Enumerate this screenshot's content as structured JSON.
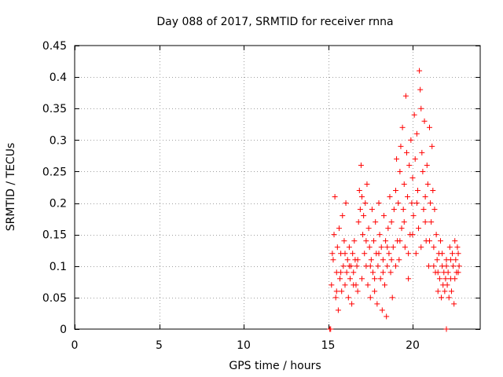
{
  "chart_data": {
    "type": "scatter",
    "title": "Day 088 of 2017, SRMTID for receiver rnna",
    "xlabel": "GPS time / hours",
    "ylabel": "SRMTID / TECUs",
    "xlim": [
      0,
      24
    ],
    "ylim": [
      0,
      0.45
    ],
    "grid": true,
    "marker": "+",
    "marker_color": "#ff0000",
    "x_ticks": [
      {
        "value": 0,
        "label": "0"
      },
      {
        "value": 5,
        "label": "5"
      },
      {
        "value": 10,
        "label": "10"
      },
      {
        "value": 15,
        "label": "15"
      },
      {
        "value": 20,
        "label": "20"
      }
    ],
    "y_ticks": [
      {
        "value": 0,
        "label": "0"
      },
      {
        "value": 0.05,
        "label": "0.05"
      },
      {
        "value": 0.1,
        "label": "0.1"
      },
      {
        "value": 0.15,
        "label": "0.15"
      },
      {
        "value": 0.2,
        "label": "0.2"
      },
      {
        "value": 0.25,
        "label": "0.25"
      },
      {
        "value": 0.3,
        "label": "0.3"
      },
      {
        "value": 0.35,
        "label": "0.35"
      },
      {
        "value": 0.4,
        "label": "0.4"
      },
      {
        "value": 0.45,
        "label": "0.45"
      }
    ],
    "series": [
      {
        "name": "SRMTID",
        "points": [
          [
            15.1,
            0.0
          ],
          [
            15.15,
            0.0
          ],
          [
            22.0,
            0.0
          ],
          [
            15.2,
            0.07
          ],
          [
            15.3,
            0.11
          ],
          [
            15.35,
            0.15
          ],
          [
            15.4,
            0.21
          ],
          [
            15.45,
            0.05
          ],
          [
            15.5,
            0.09
          ],
          [
            15.55,
            0.13
          ],
          [
            15.6,
            0.03
          ],
          [
            15.65,
            0.16
          ],
          [
            15.7,
            0.08
          ],
          [
            15.75,
            0.12
          ],
          [
            15.8,
            0.06
          ],
          [
            15.85,
            0.18
          ],
          [
            15.9,
            0.1
          ],
          [
            15.95,
            0.14
          ],
          [
            16.0,
            0.07
          ],
          [
            16.05,
            0.2
          ],
          [
            16.1,
            0.09
          ],
          [
            16.15,
            0.11
          ],
          [
            16.2,
            0.05
          ],
          [
            16.25,
            0.13
          ],
          [
            16.3,
            0.08
          ],
          [
            16.35,
            0.1
          ],
          [
            16.4,
            0.04
          ],
          [
            16.45,
            0.12
          ],
          [
            16.5,
            0.09
          ],
          [
            16.55,
            0.14
          ],
          [
            16.6,
            0.11
          ],
          [
            16.65,
            0.07
          ],
          [
            16.7,
            0.1
          ],
          [
            16.75,
            0.06
          ],
          [
            16.8,
            0.17
          ],
          [
            16.85,
            0.22
          ],
          [
            16.9,
            0.19
          ],
          [
            16.95,
            0.26
          ],
          [
            17.0,
            0.21
          ],
          [
            17.05,
            0.15
          ],
          [
            17.1,
            0.18
          ],
          [
            17.15,
            0.12
          ],
          [
            17.2,
            0.2
          ],
          [
            17.25,
            0.1
          ],
          [
            17.3,
            0.23
          ],
          [
            17.35,
            0.07
          ],
          [
            17.4,
            0.16
          ],
          [
            17.45,
            0.13
          ],
          [
            17.5,
            0.05
          ],
          [
            17.55,
            0.11
          ],
          [
            17.6,
            0.19
          ],
          [
            17.65,
            0.09
          ],
          [
            17.7,
            0.14
          ],
          [
            17.75,
            0.06
          ],
          [
            17.8,
            0.17
          ],
          [
            17.85,
            0.12
          ],
          [
            17.9,
            0.04
          ],
          [
            17.95,
            0.1
          ],
          [
            18.0,
            0.2
          ],
          [
            18.05,
            0.15
          ],
          [
            18.1,
            0.08
          ],
          [
            18.15,
            0.13
          ],
          [
            18.2,
            0.03
          ],
          [
            18.25,
            0.11
          ],
          [
            18.3,
            0.18
          ],
          [
            18.35,
            0.07
          ],
          [
            18.4,
            0.14
          ],
          [
            18.45,
            0.02
          ],
          [
            18.5,
            0.1
          ],
          [
            18.55,
            0.16
          ],
          [
            18.6,
            0.12
          ],
          [
            18.65,
            0.21
          ],
          [
            18.7,
            0.09
          ],
          [
            18.75,
            0.17
          ],
          [
            18.8,
            0.05
          ],
          [
            18.85,
            0.13
          ],
          [
            18.9,
            0.19
          ],
          [
            19.0,
            0.22
          ],
          [
            19.05,
            0.27
          ],
          [
            19.1,
            0.14
          ],
          [
            19.15,
            0.2
          ],
          [
            19.2,
            0.11
          ],
          [
            19.25,
            0.25
          ],
          [
            19.3,
            0.29
          ],
          [
            19.35,
            0.16
          ],
          [
            19.4,
            0.32
          ],
          [
            19.45,
            0.19
          ],
          [
            19.5,
            0.23
          ],
          [
            19.55,
            0.13
          ],
          [
            19.6,
            0.37
          ],
          [
            19.65,
            0.28
          ],
          [
            19.7,
            0.21
          ],
          [
            19.75,
            0.08
          ],
          [
            19.8,
            0.26
          ],
          [
            19.85,
            0.15
          ],
          [
            19.9,
            0.3
          ],
          [
            19.95,
            0.2
          ],
          [
            20.0,
            0.24
          ],
          [
            20.05,
            0.18
          ],
          [
            20.1,
            0.34
          ],
          [
            20.15,
            0.27
          ],
          [
            20.2,
            0.12
          ],
          [
            20.25,
            0.31
          ],
          [
            20.3,
            0.22
          ],
          [
            20.35,
            0.16
          ],
          [
            20.4,
            0.41
          ],
          [
            20.45,
            0.38
          ],
          [
            20.5,
            0.35
          ],
          [
            20.55,
            0.28
          ],
          [
            20.6,
            0.25
          ],
          [
            20.65,
            0.19
          ],
          [
            20.7,
            0.33
          ],
          [
            20.75,
            0.21
          ],
          [
            20.8,
            0.14
          ],
          [
            20.85,
            0.26
          ],
          [
            20.9,
            0.23
          ],
          [
            20.95,
            0.1
          ],
          [
            21.0,
            0.32
          ],
          [
            21.05,
            0.2
          ],
          [
            21.1,
            0.17
          ],
          [
            21.15,
            0.29
          ],
          [
            21.2,
            0.22
          ],
          [
            21.25,
            0.13
          ],
          [
            21.3,
            0.19
          ],
          [
            21.35,
            0.09
          ],
          [
            21.4,
            0.15
          ],
          [
            21.45,
            0.11
          ],
          [
            21.5,
            0.06
          ],
          [
            21.55,
            0.12
          ],
          [
            21.6,
            0.08
          ],
          [
            21.65,
            0.14
          ],
          [
            21.7,
            0.05
          ],
          [
            21.75,
            0.1
          ],
          [
            21.8,
            0.07
          ],
          [
            21.85,
            0.09
          ],
          [
            21.9,
            0.06
          ],
          [
            21.95,
            0.08
          ],
          [
            22.0,
            0.11
          ],
          [
            22.05,
            0.07
          ],
          [
            22.1,
            0.09
          ],
          [
            22.15,
            0.05
          ],
          [
            22.2,
            0.13
          ],
          [
            22.25,
            0.08
          ],
          [
            22.3,
            0.06
          ],
          [
            22.35,
            0.12
          ],
          [
            22.4,
            0.1
          ],
          [
            22.45,
            0.04
          ],
          [
            22.5,
            0.14
          ],
          [
            22.55,
            0.11
          ],
          [
            22.6,
            0.09
          ],
          [
            22.65,
            0.13
          ],
          [
            22.7,
            0.12
          ],
          [
            22.75,
            0.1
          ],
          [
            15.25,
            0.12
          ],
          [
            15.5,
            0.06
          ],
          [
            15.75,
            0.09
          ],
          [
            16.0,
            0.12
          ],
          [
            16.25,
            0.1
          ],
          [
            16.5,
            0.07
          ],
          [
            16.75,
            0.11
          ],
          [
            17.0,
            0.08
          ],
          [
            17.25,
            0.14
          ],
          [
            17.5,
            0.1
          ],
          [
            17.75,
            0.08
          ],
          [
            18.0,
            0.12
          ],
          [
            18.25,
            0.09
          ],
          [
            18.5,
            0.13
          ],
          [
            18.75,
            0.11
          ],
          [
            19.0,
            0.1
          ],
          [
            19.25,
            0.14
          ],
          [
            19.5,
            0.17
          ],
          [
            19.75,
            0.12
          ],
          [
            20.0,
            0.15
          ],
          [
            20.25,
            0.2
          ],
          [
            20.5,
            0.13
          ],
          [
            20.75,
            0.17
          ],
          [
            21.0,
            0.14
          ],
          [
            21.25,
            0.1
          ],
          [
            21.5,
            0.09
          ],
          [
            21.75,
            0.12
          ],
          [
            22.0,
            0.1
          ],
          [
            22.25,
            0.11
          ],
          [
            22.5,
            0.08
          ],
          [
            22.7,
            0.09
          ]
        ]
      }
    ]
  }
}
